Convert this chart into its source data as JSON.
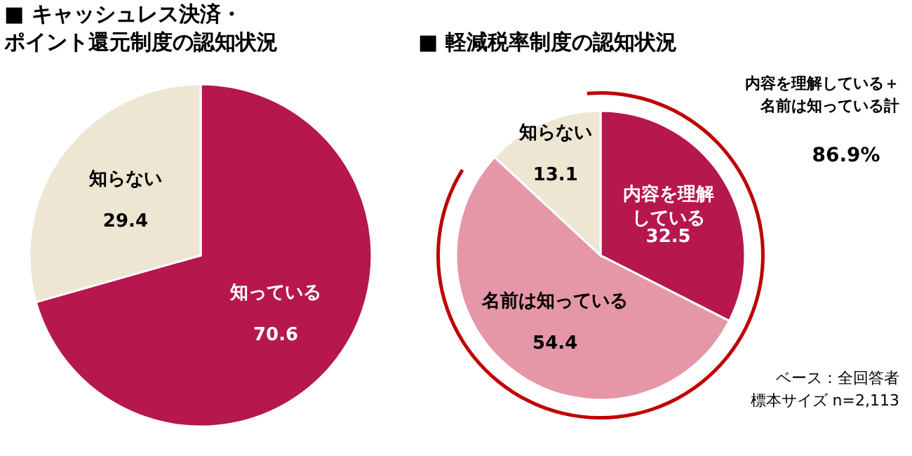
{
  "chart_data": [
    {
      "type": "pie",
      "title": "■ キャッシュレス決済・ポイント還元制度の認知状況",
      "categories": [
        "知っている",
        "知らない"
      ],
      "values": [
        70.6,
        29.4
      ],
      "colors": [
        "#b5174e",
        "#ece6d2"
      ],
      "data_labels": true
    },
    {
      "type": "pie",
      "title": "■ 軽減税率制度の認知状況",
      "categories": [
        "内容を理解している",
        "名前は知っている",
        "知らない"
      ],
      "values": [
        32.5,
        54.4,
        13.1
      ],
      "colors": [
        "#b5174e",
        "#e597a8",
        "#ece6d2"
      ],
      "data_labels": true,
      "annotations": [
        "内容を理解している＋名前は知っている計",
        "86.9%",
        "ベース：全回答者",
        "標本サイズ n=2,113"
      ]
    }
  ]
}
